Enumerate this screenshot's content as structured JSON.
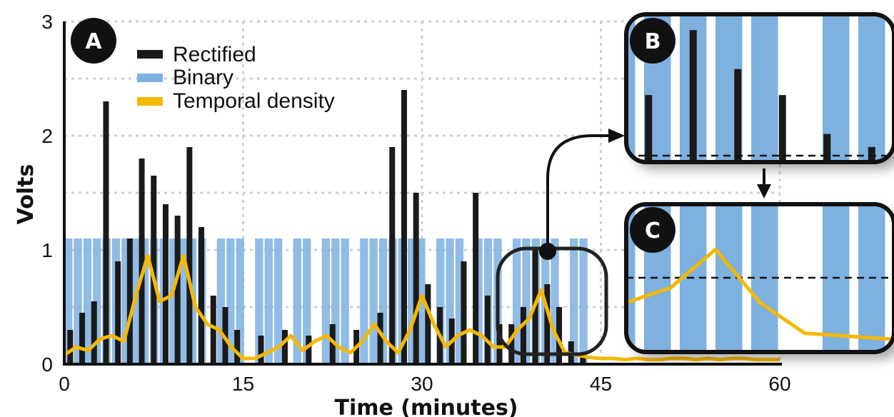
{
  "chart_data": {
    "type": "line",
    "xlabel": "Time (minutes)",
    "ylabel": "Volts",
    "xlim": [
      0,
      60
    ],
    "ylim": [
      0,
      3
    ],
    "x_ticks": [
      "0",
      "15",
      "30",
      "45",
      "60"
    ],
    "y_ticks": [
      "0",
      "1",
      "2",
      "3"
    ],
    "grid": true,
    "legend_position": "top-left",
    "legend": [
      "Rectified",
      "Binary",
      "Temporal density"
    ],
    "series": [
      {
        "name": "Temporal density",
        "color": "#f5b800",
        "x": [
          0,
          1,
          2,
          3,
          4,
          5,
          6,
          7,
          8,
          9,
          10,
          11,
          12,
          13,
          14,
          15,
          16,
          17,
          18,
          19,
          20,
          21,
          22,
          23,
          24,
          25,
          26,
          27,
          28,
          29,
          30,
          31,
          32,
          33,
          34,
          35,
          36,
          37,
          38,
          39,
          40,
          41,
          42,
          43,
          44,
          45,
          46,
          47,
          48,
          49,
          50,
          51,
          52,
          53,
          54,
          55,
          56,
          57,
          58,
          59,
          60
        ],
        "y": [
          0.08,
          0.15,
          0.12,
          0.22,
          0.25,
          0.2,
          0.6,
          0.95,
          0.55,
          0.6,
          0.95,
          0.5,
          0.35,
          0.3,
          0.15,
          0.05,
          0.05,
          0.1,
          0.15,
          0.25,
          0.12,
          0.2,
          0.25,
          0.15,
          0.1,
          0.2,
          0.35,
          0.2,
          0.1,
          0.3,
          0.6,
          0.35,
          0.15,
          0.25,
          0.3,
          0.25,
          0.15,
          0.15,
          0.3,
          0.4,
          0.65,
          0.3,
          0.1,
          0.08,
          0.06,
          0.05,
          0.05,
          0.04,
          0.05,
          0.04,
          0.04,
          0.05,
          0.05,
          0.04,
          0.05,
          0.04,
          0.05,
          0.05,
          0.04,
          0.04,
          0.04
        ]
      },
      {
        "name": "Rectified",
        "color": "#1a1a1a",
        "x": [
          0.5,
          1.5,
          2.5,
          3.5,
          4.5,
          5.5,
          6.5,
          7.5,
          8.5,
          9.5,
          10.5,
          11.5,
          12.5,
          13.5,
          14.5,
          16.5,
          18.5,
          20.5,
          22.5,
          24.5,
          26.5,
          27.5,
          28.5,
          29.5,
          30.5,
          31.5,
          32.5,
          33.5,
          34.5,
          35.5,
          36.5,
          37.5,
          38.5,
          39.5,
          40.5,
          41.5,
          42.5,
          43.5
        ],
        "y": [
          0.3,
          0.45,
          0.55,
          2.3,
          0.9,
          1.1,
          1.8,
          1.65,
          1.4,
          1.3,
          1.9,
          1.2,
          0.6,
          0.5,
          0.3,
          0.25,
          0.3,
          0.25,
          0.35,
          0.3,
          0.45,
          1.9,
          2.4,
          1.5,
          0.7,
          0.5,
          0.4,
          0.9,
          1.5,
          0.6,
          0.35,
          0.35,
          0.5,
          1.0,
          0.7,
          0.5,
          0.2,
          0.1
        ]
      },
      {
        "name": "Binary",
        "color": "#7eb0e0",
        "x": [
          0,
          0.8,
          1.6,
          2.4,
          3.2,
          4,
          4.8,
          5.6,
          6.4,
          7.2,
          8,
          8.8,
          9.6,
          10.4,
          11.2,
          12,
          12.8,
          13.6,
          14.4,
          15.2,
          16,
          16.8,
          17.6,
          18.4,
          19.2,
          20,
          20.8,
          21.6,
          22.4,
          23.2,
          24,
          24.8,
          25.6,
          26.4,
          27.2,
          28,
          28.8,
          29.6,
          30.4,
          31.2,
          32,
          32.8,
          33.6,
          34.4,
          35.2,
          36,
          36.8,
          37.6,
          38.4,
          39.2,
          40,
          40.8,
          41.6,
          42.4,
          43.2
        ],
        "y": [
          1,
          1,
          1,
          1,
          1,
          1,
          1,
          1,
          1,
          1,
          1,
          1,
          1,
          1,
          1,
          0,
          1,
          1,
          1,
          0,
          1,
          1,
          1,
          0,
          1,
          1,
          0,
          1,
          1,
          1,
          0,
          1,
          1,
          1,
          1,
          1,
          1,
          1,
          0,
          1,
          1,
          1,
          0,
          1,
          1,
          1,
          0,
          1,
          1,
          1,
          1,
          1,
          0,
          1,
          1
        ]
      }
    ],
    "panels": [
      "A",
      "B",
      "C"
    ]
  }
}
